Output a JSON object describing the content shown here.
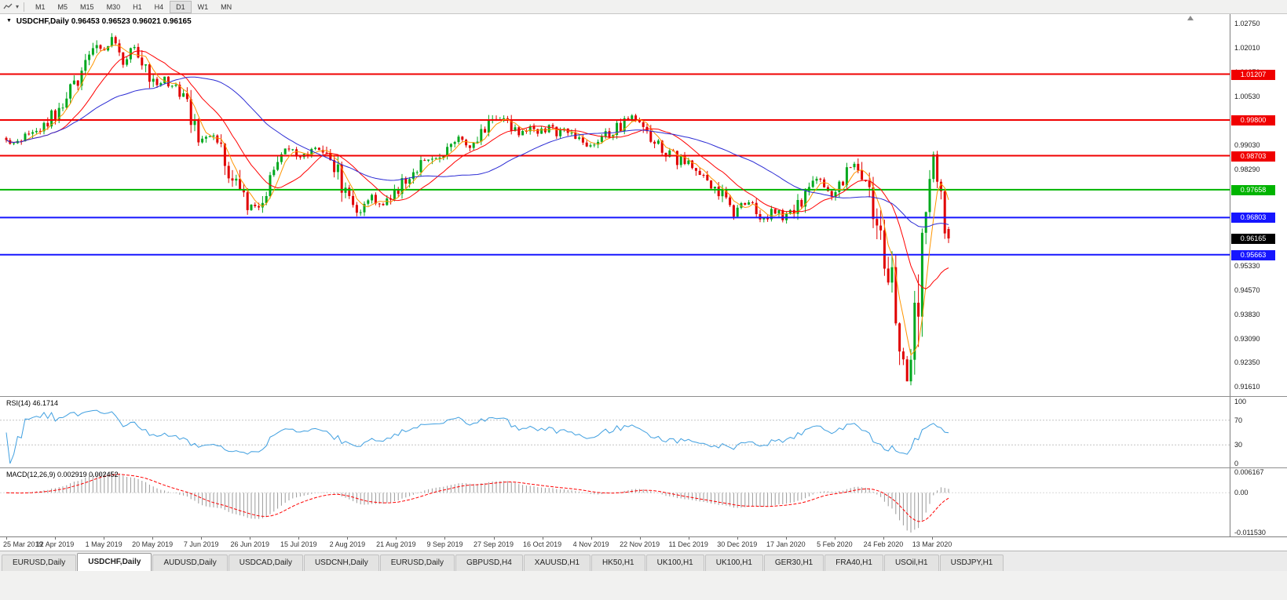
{
  "toolbar": {
    "timeframes": [
      "M1",
      "M5",
      "M15",
      "M30",
      "H1",
      "H4",
      "D1",
      "W1",
      "MN"
    ],
    "active_timeframe": "D1",
    "icons": [
      "line-chart-icon",
      "chevron-down-icon"
    ]
  },
  "chart": {
    "title": "USDCHF,Daily",
    "ohlc": "0.96453 0.96523 0.96021 0.96165",
    "current_price_label": "0.96165",
    "current_price_color": "#000000",
    "axis_ticks": [
      "1.02750",
      "1.02010",
      "1.01270",
      "1.00530",
      "0.99770",
      "0.99030",
      "0.98290",
      "0.97550",
      "0.96810",
      "0.96070",
      "0.95330",
      "0.94570",
      "0.93830",
      "0.93090",
      "0.92350",
      "0.91610"
    ],
    "levels": [
      {
        "label": "1.01207",
        "price": 1.01207,
        "color": "#f00000"
      },
      {
        "label": "0.99800",
        "price": 0.998,
        "color": "#f00000"
      },
      {
        "label": "0.98703",
        "price": 0.98703,
        "color": "#f00000"
      },
      {
        "label": "0.97658",
        "price": 0.97658,
        "color": "#00b400"
      },
      {
        "label": "0.96803",
        "price": 0.96803,
        "color": "#1616ff"
      },
      {
        "label": "0.95663",
        "price": 0.95663,
        "color": "#1616ff"
      }
    ]
  },
  "rsi": {
    "label": "RSI(14)",
    "value": "46.1714",
    "axis_labels": [
      "100",
      "70",
      "30",
      "0"
    ],
    "upper_level": 70,
    "lower_level": 30
  },
  "macd": {
    "label": "MACD(12,26,9)",
    "main": "0.002919",
    "signal": "0.002452",
    "axis_labels": [
      "0.006167",
      "0.00",
      "-0.011530"
    ]
  },
  "dates": [
    "25 Mar 2019",
    "12 Apr 2019",
    "1 May 2019",
    "20 May 2019",
    "7 Jun 2019",
    "26 Jun 2019",
    "15 Jul 2019",
    "2 Aug 2019",
    "21 Aug 2019",
    "9 Sep 2019",
    "27 Sep 2019",
    "16 Oct 2019",
    "4 Nov 2019",
    "22 Nov 2019",
    "11 Dec 2019",
    "30 Dec 2019",
    "17 Jan 2020",
    "5 Feb 2020",
    "24 Feb 2020",
    "13 Mar 2020"
  ],
  "tabs": {
    "active_index": 1,
    "items": [
      "EURUSD,Daily",
      "USDCHF,Daily",
      "AUDUSD,Daily",
      "USDCAD,Daily",
      "USDCNH,Daily",
      "EURUSD,Daily",
      "GBPUSD,H4",
      "XAUUSD,H1",
      "HK50,H1",
      "UK100,H1",
      "UK100,H1",
      "GER30,H1",
      "FRA40,H1",
      "USOil,H1",
      "USDJPY,H1"
    ]
  },
  "chart_data": {
    "type": "candlestick",
    "symbol": "USDCHF",
    "period": "Daily",
    "date_range": [
      "25 Mar 2019",
      "20 Mar 2020"
    ],
    "ylim": [
      0.913,
      1.0305
    ],
    "candle_count": 251,
    "ohlc_last": {
      "open": 0.96453,
      "high": 0.96523,
      "low": 0.96021,
      "close": 0.96165
    },
    "horizontal_levels": [
      1.01207,
      0.998,
      0.98703,
      0.97658,
      0.96803,
      0.95663
    ],
    "rsi_period": 14,
    "rsi_last": 46.1714,
    "macd_params": [
      12,
      26,
      9
    ],
    "macd_last": {
      "main": 0.002919,
      "signal": 0.002452
    },
    "macd_range": [
      -0.01153,
      0.006167
    ],
    "price_anchors": [
      [
        0.0,
        0.9925
      ],
      [
        0.01,
        0.9903
      ],
      [
        0.02,
        0.9938
      ],
      [
        0.032,
        0.995
      ],
      [
        0.042,
        0.9972
      ],
      [
        0.052,
        1.0
      ],
      [
        0.062,
        1.004
      ],
      [
        0.072,
        1.0095
      ],
      [
        0.082,
        1.0155
      ],
      [
        0.092,
        1.0205
      ],
      [
        0.1,
        1.0185
      ],
      [
        0.108,
        1.0218
      ],
      [
        0.116,
        1.0222
      ],
      [
        0.124,
        1.0155
      ],
      [
        0.132,
        1.0188
      ],
      [
        0.141,
        1.019
      ],
      [
        0.149,
        1.012
      ],
      [
        0.156,
        1.0088
      ],
      [
        0.165,
        1.0108
      ],
      [
        0.175,
        1.0095
      ],
      [
        0.186,
        1.004
      ],
      [
        0.196,
        0.999
      ],
      [
        0.206,
        0.9905
      ],
      [
        0.214,
        0.9932
      ],
      [
        0.222,
        0.9928
      ],
      [
        0.231,
        0.987
      ],
      [
        0.24,
        0.9812
      ],
      [
        0.25,
        0.9752
      ],
      [
        0.258,
        0.9718
      ],
      [
        0.266,
        0.97
      ],
      [
        0.275,
        0.976
      ],
      [
        0.285,
        0.9828
      ],
      [
        0.294,
        0.9882
      ],
      [
        0.302,
        0.989
      ],
      [
        0.31,
        0.9852
      ],
      [
        0.318,
        0.9872
      ],
      [
        0.326,
        0.9896
      ],
      [
        0.335,
        0.9878
      ],
      [
        0.344,
        0.9858
      ],
      [
        0.352,
        0.9812
      ],
      [
        0.36,
        0.9748
      ],
      [
        0.368,
        0.97
      ],
      [
        0.374,
        0.9678
      ],
      [
        0.382,
        0.9716
      ],
      [
        0.39,
        0.9746
      ],
      [
        0.398,
        0.9716
      ],
      [
        0.406,
        0.9744
      ],
      [
        0.414,
        0.9772
      ],
      [
        0.424,
        0.9794
      ],
      [
        0.436,
        0.983
      ],
      [
        0.45,
        0.9855
      ],
      [
        0.463,
        0.988
      ],
      [
        0.474,
        0.9906
      ],
      [
        0.484,
        0.9922
      ],
      [
        0.494,
        0.9902
      ],
      [
        0.505,
        0.9938
      ],
      [
        0.516,
        0.9974
      ],
      [
        0.525,
        0.9992
      ],
      [
        0.534,
        0.9972
      ],
      [
        0.544,
        0.993
      ],
      [
        0.554,
        0.9962
      ],
      [
        0.564,
        0.9944
      ],
      [
        0.575,
        0.9958
      ],
      [
        0.586,
        0.9938
      ],
      [
        0.597,
        0.9952
      ],
      [
        0.608,
        0.9922
      ],
      [
        0.618,
        0.9906
      ],
      [
        0.63,
        0.9928
      ],
      [
        0.642,
        0.9946
      ],
      [
        0.655,
        0.9968
      ],
      [
        0.669,
        0.999
      ],
      [
        0.68,
        0.9936
      ],
      [
        0.692,
        0.9896
      ],
      [
        0.705,
        0.9875
      ],
      [
        0.721,
        0.9842
      ],
      [
        0.735,
        0.9812
      ],
      [
        0.748,
        0.9788
      ],
      [
        0.758,
        0.9752
      ],
      [
        0.766,
        0.9716
      ],
      [
        0.772,
        0.9692
      ],
      [
        0.78,
        0.9722
      ],
      [
        0.79,
        0.9736
      ],
      [
        0.798,
        0.9692
      ],
      [
        0.806,
        0.9682
      ],
      [
        0.815,
        0.9706
      ],
      [
        0.824,
        0.9682
      ],
      [
        0.833,
        0.9702
      ],
      [
        0.842,
        0.9722
      ],
      [
        0.852,
        0.9762
      ],
      [
        0.862,
        0.9792
      ],
      [
        0.871,
        0.9774
      ],
      [
        0.876,
        0.9756
      ],
      [
        0.883,
        0.9788
      ],
      [
        0.891,
        0.9812
      ],
      [
        0.898,
        0.9838
      ],
      [
        0.906,
        0.9818
      ],
      [
        0.913,
        0.9772
      ],
      [
        0.919,
        0.9712
      ],
      [
        0.925,
        0.9655
      ],
      [
        0.931,
        0.9592
      ],
      [
        0.937,
        0.9512
      ],
      [
        0.943,
        0.9415
      ],
      [
        0.949,
        0.9308
      ],
      [
        0.954,
        0.9222
      ],
      [
        0.957,
        0.9185
      ],
      [
        0.961,
        0.9295
      ],
      [
        0.965,
        0.9405
      ],
      [
        0.969,
        0.9502
      ],
      [
        0.972,
        0.9572
      ],
      [
        0.975,
        0.9668
      ],
      [
        0.978,
        0.9792
      ],
      [
        0.981,
        0.9872
      ],
      [
        0.983,
        0.9888
      ],
      [
        0.986,
        0.9838
      ],
      [
        0.989,
        0.9775
      ],
      [
        0.992,
        0.9725
      ],
      [
        0.995,
        0.9672
      ],
      [
        1.0,
        0.9617
      ]
    ],
    "moving_averages": [
      {
        "period": 5,
        "color": "#ff9500"
      },
      {
        "period": 15,
        "color": "#ff0000"
      },
      {
        "period": 40,
        "color": "#2b2bd4"
      }
    ],
    "colors": {
      "up": "#00a81e",
      "down": "#e00000",
      "rsi": "#3f9fe0",
      "macd_hist": "#9a9a9a",
      "macd_signal": "#ff0000",
      "background": "#ffffff",
      "axis_text": "#1a1a1a"
    }
  }
}
